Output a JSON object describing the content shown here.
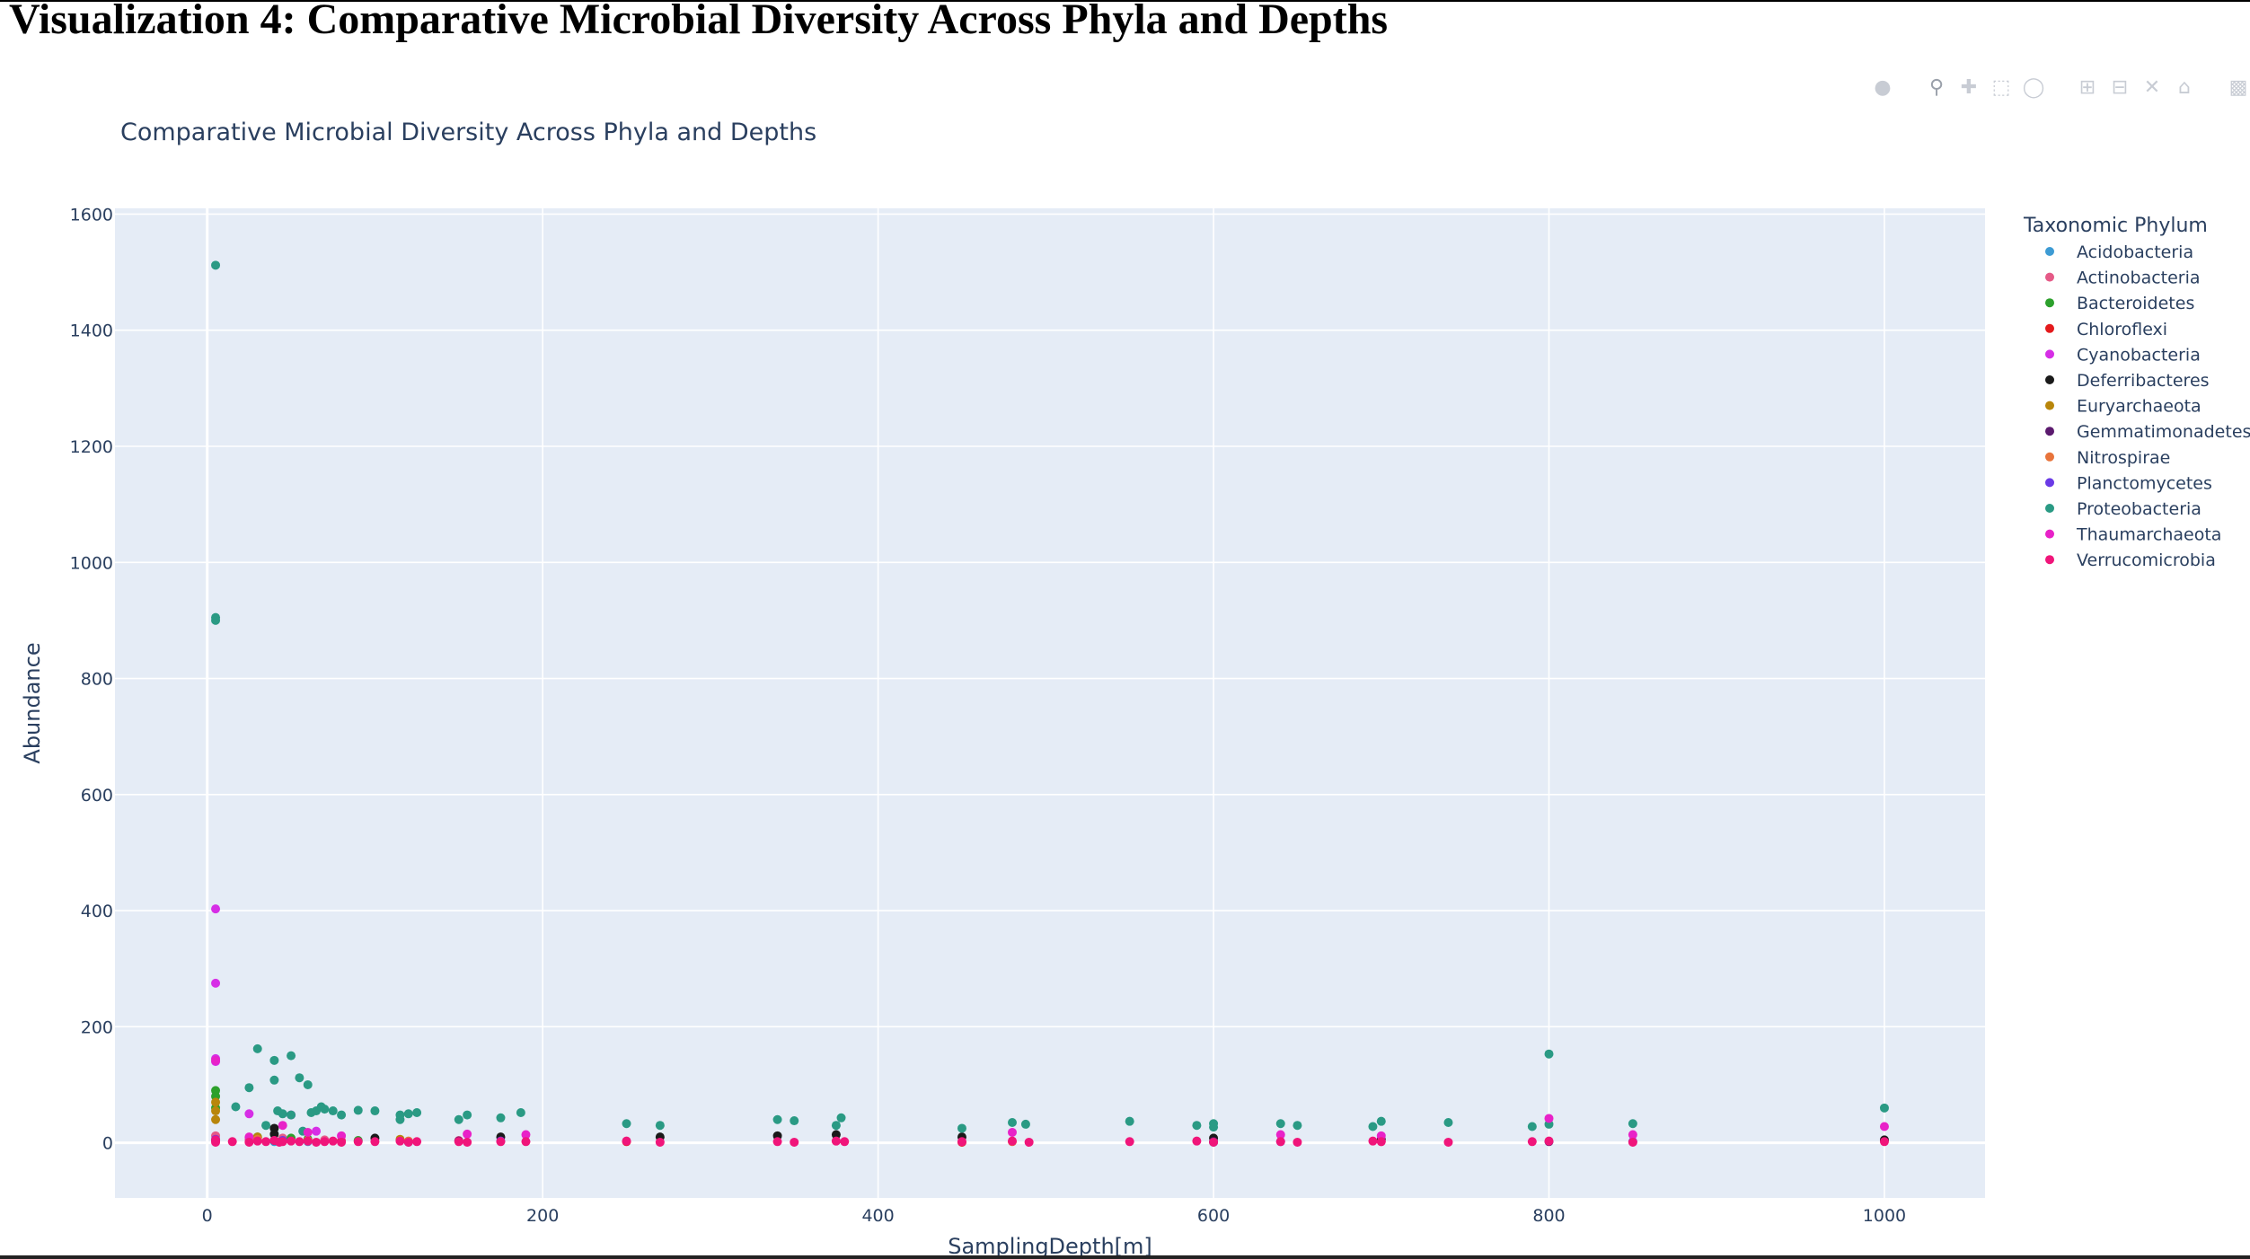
{
  "page": {
    "heading": "Visualization 4: Comparative Microbial Diversity Across Phyla and Depths"
  },
  "modebar": {
    "tools": [
      "camera-icon",
      "zoom-icon",
      "pan-icon",
      "box-select-icon",
      "lasso-select-icon",
      "zoom-in-icon",
      "zoom-out-icon",
      "autoscale-icon",
      "reset-axes-icon",
      "plotly-logo-icon"
    ]
  },
  "chart_data": {
    "type": "scatter",
    "title": "Comparative Microbial Diversity Across Phyla and Depths",
    "xlabel": "SamplingDepth[m]",
    "ylabel": "Abundance",
    "xlim": [
      -55,
      1060
    ],
    "ylim": [
      -95,
      1610
    ],
    "xticks": [
      0,
      200,
      400,
      600,
      800,
      1000
    ],
    "yticks": [
      0,
      200,
      400,
      600,
      800,
      1000,
      1200,
      1400,
      1600
    ],
    "grid": true,
    "legend_title": "Taxonomic Phylum",
    "legend_position": "right",
    "series": [
      {
        "name": "Acidobacteria",
        "color": "#3d9bd4",
        "x": [
          5,
          40,
          60,
          120,
          600
        ],
        "y": [
          3,
          2,
          2,
          1,
          1
        ]
      },
      {
        "name": "Actinobacteria",
        "color": "#e55a87",
        "x": [
          5,
          25,
          45,
          70,
          150,
          375,
          700
        ],
        "y": [
          12,
          6,
          8,
          5,
          4,
          3,
          2
        ]
      },
      {
        "name": "Bacteroidetes",
        "color": "#2ca02c",
        "x": [
          5,
          5,
          5,
          30,
          50,
          60,
          90
        ],
        "y": [
          90,
          80,
          60,
          10,
          8,
          6,
          4
        ]
      },
      {
        "name": "Chloroflexi",
        "color": "#e41a1c",
        "x": [
          5,
          40,
          80,
          120,
          250,
          450
        ],
        "y": [
          5,
          4,
          3,
          2,
          2,
          1
        ]
      },
      {
        "name": "Cyanobacteria",
        "color": "#d62ee6",
        "x": [
          5,
          5,
          5,
          25,
          50,
          65,
          5
        ],
        "y": [
          403,
          275,
          140,
          50,
          48,
          20,
          145
        ]
      },
      {
        "name": "Deferribacteres",
        "color": "#1a1a1a",
        "x": [
          40,
          40,
          100,
          175,
          270,
          340,
          375,
          450,
          600,
          700,
          1000
        ],
        "y": [
          25,
          15,
          8,
          10,
          10,
          12,
          14,
          10,
          8,
          6,
          5
        ]
      },
      {
        "name": "Euryarchaeota",
        "color": "#b8860b",
        "x": [
          5,
          5,
          5,
          30,
          115,
          60
        ],
        "y": [
          70,
          55,
          40,
          10,
          6,
          4
        ]
      },
      {
        "name": "Gemmatimonadetes",
        "color": "#5b1a6e",
        "x": [
          40,
          150,
          600,
          800
        ],
        "y": [
          4,
          3,
          2,
          2
        ]
      },
      {
        "name": "Nitrospirae",
        "color": "#e8743b",
        "x": [
          30,
          60,
          120,
          480
        ],
        "y": [
          6,
          4,
          3,
          2
        ]
      },
      {
        "name": "Planctomycetes",
        "color": "#6a3ae6",
        "x": [
          5,
          45,
          175,
          640,
          850
        ],
        "y": [
          6,
          4,
          3,
          2,
          2
        ]
      },
      {
        "name": "Proteobacteria",
        "color": "#2a9a84",
        "x": [
          5,
          5,
          5,
          17,
          25,
          30,
          35,
          40,
          40,
          42,
          45,
          50,
          50,
          55,
          57,
          60,
          62,
          65,
          68,
          70,
          75,
          80,
          90,
          100,
          115,
          115,
          120,
          125,
          150,
          155,
          175,
          187,
          250,
          270,
          340,
          350,
          375,
          378,
          450,
          480,
          488,
          550,
          590,
          600,
          600,
          640,
          650,
          695,
          700,
          740,
          790,
          800,
          800,
          850,
          1000
        ],
        "y": [
          1512,
          905,
          900,
          62,
          95,
          162,
          30,
          142,
          108,
          55,
          50,
          150,
          48,
          112,
          20,
          100,
          52,
          55,
          62,
          58,
          55,
          48,
          56,
          55,
          48,
          40,
          50,
          52,
          40,
          48,
          43,
          52,
          33,
          30,
          40,
          38,
          30,
          43,
          25,
          35,
          32,
          37,
          30,
          33,
          27,
          33,
          30,
          28,
          37,
          35,
          28,
          153,
          32,
          33,
          60
        ]
      },
      {
        "name": "Thaumarchaeota",
        "color": "#e822c8",
        "x": [
          5,
          25,
          45,
          60,
          80,
          155,
          190,
          480,
          640,
          700,
          800,
          850,
          1000
        ],
        "y": [
          142,
          10,
          30,
          18,
          12,
          15,
          14,
          18,
          14,
          12,
          42,
          14,
          28
        ]
      },
      {
        "name": "Verrucomicrobia",
        "color": "#f0157a",
        "x": [
          5,
          5,
          15,
          25,
          30,
          35,
          40,
          43,
          45,
          50,
          55,
          60,
          65,
          70,
          75,
          80,
          90,
          100,
          115,
          120,
          125,
          150,
          155,
          175,
          190,
          250,
          270,
          340,
          350,
          375,
          380,
          450,
          480,
          490,
          550,
          590,
          600,
          640,
          650,
          695,
          700,
          740,
          790,
          800,
          850,
          1000
        ],
        "y": [
          5,
          1,
          2,
          1,
          3,
          2,
          4,
          1,
          2,
          3,
          2,
          3,
          1,
          2,
          3,
          1,
          2,
          2,
          3,
          1,
          2,
          2,
          1,
          2,
          2,
          3,
          1,
          2,
          1,
          3,
          2,
          2,
          3,
          1,
          2,
          3,
          1,
          2,
          1,
          3,
          2,
          1,
          2,
          3,
          1,
          2
        ]
      }
    ]
  }
}
